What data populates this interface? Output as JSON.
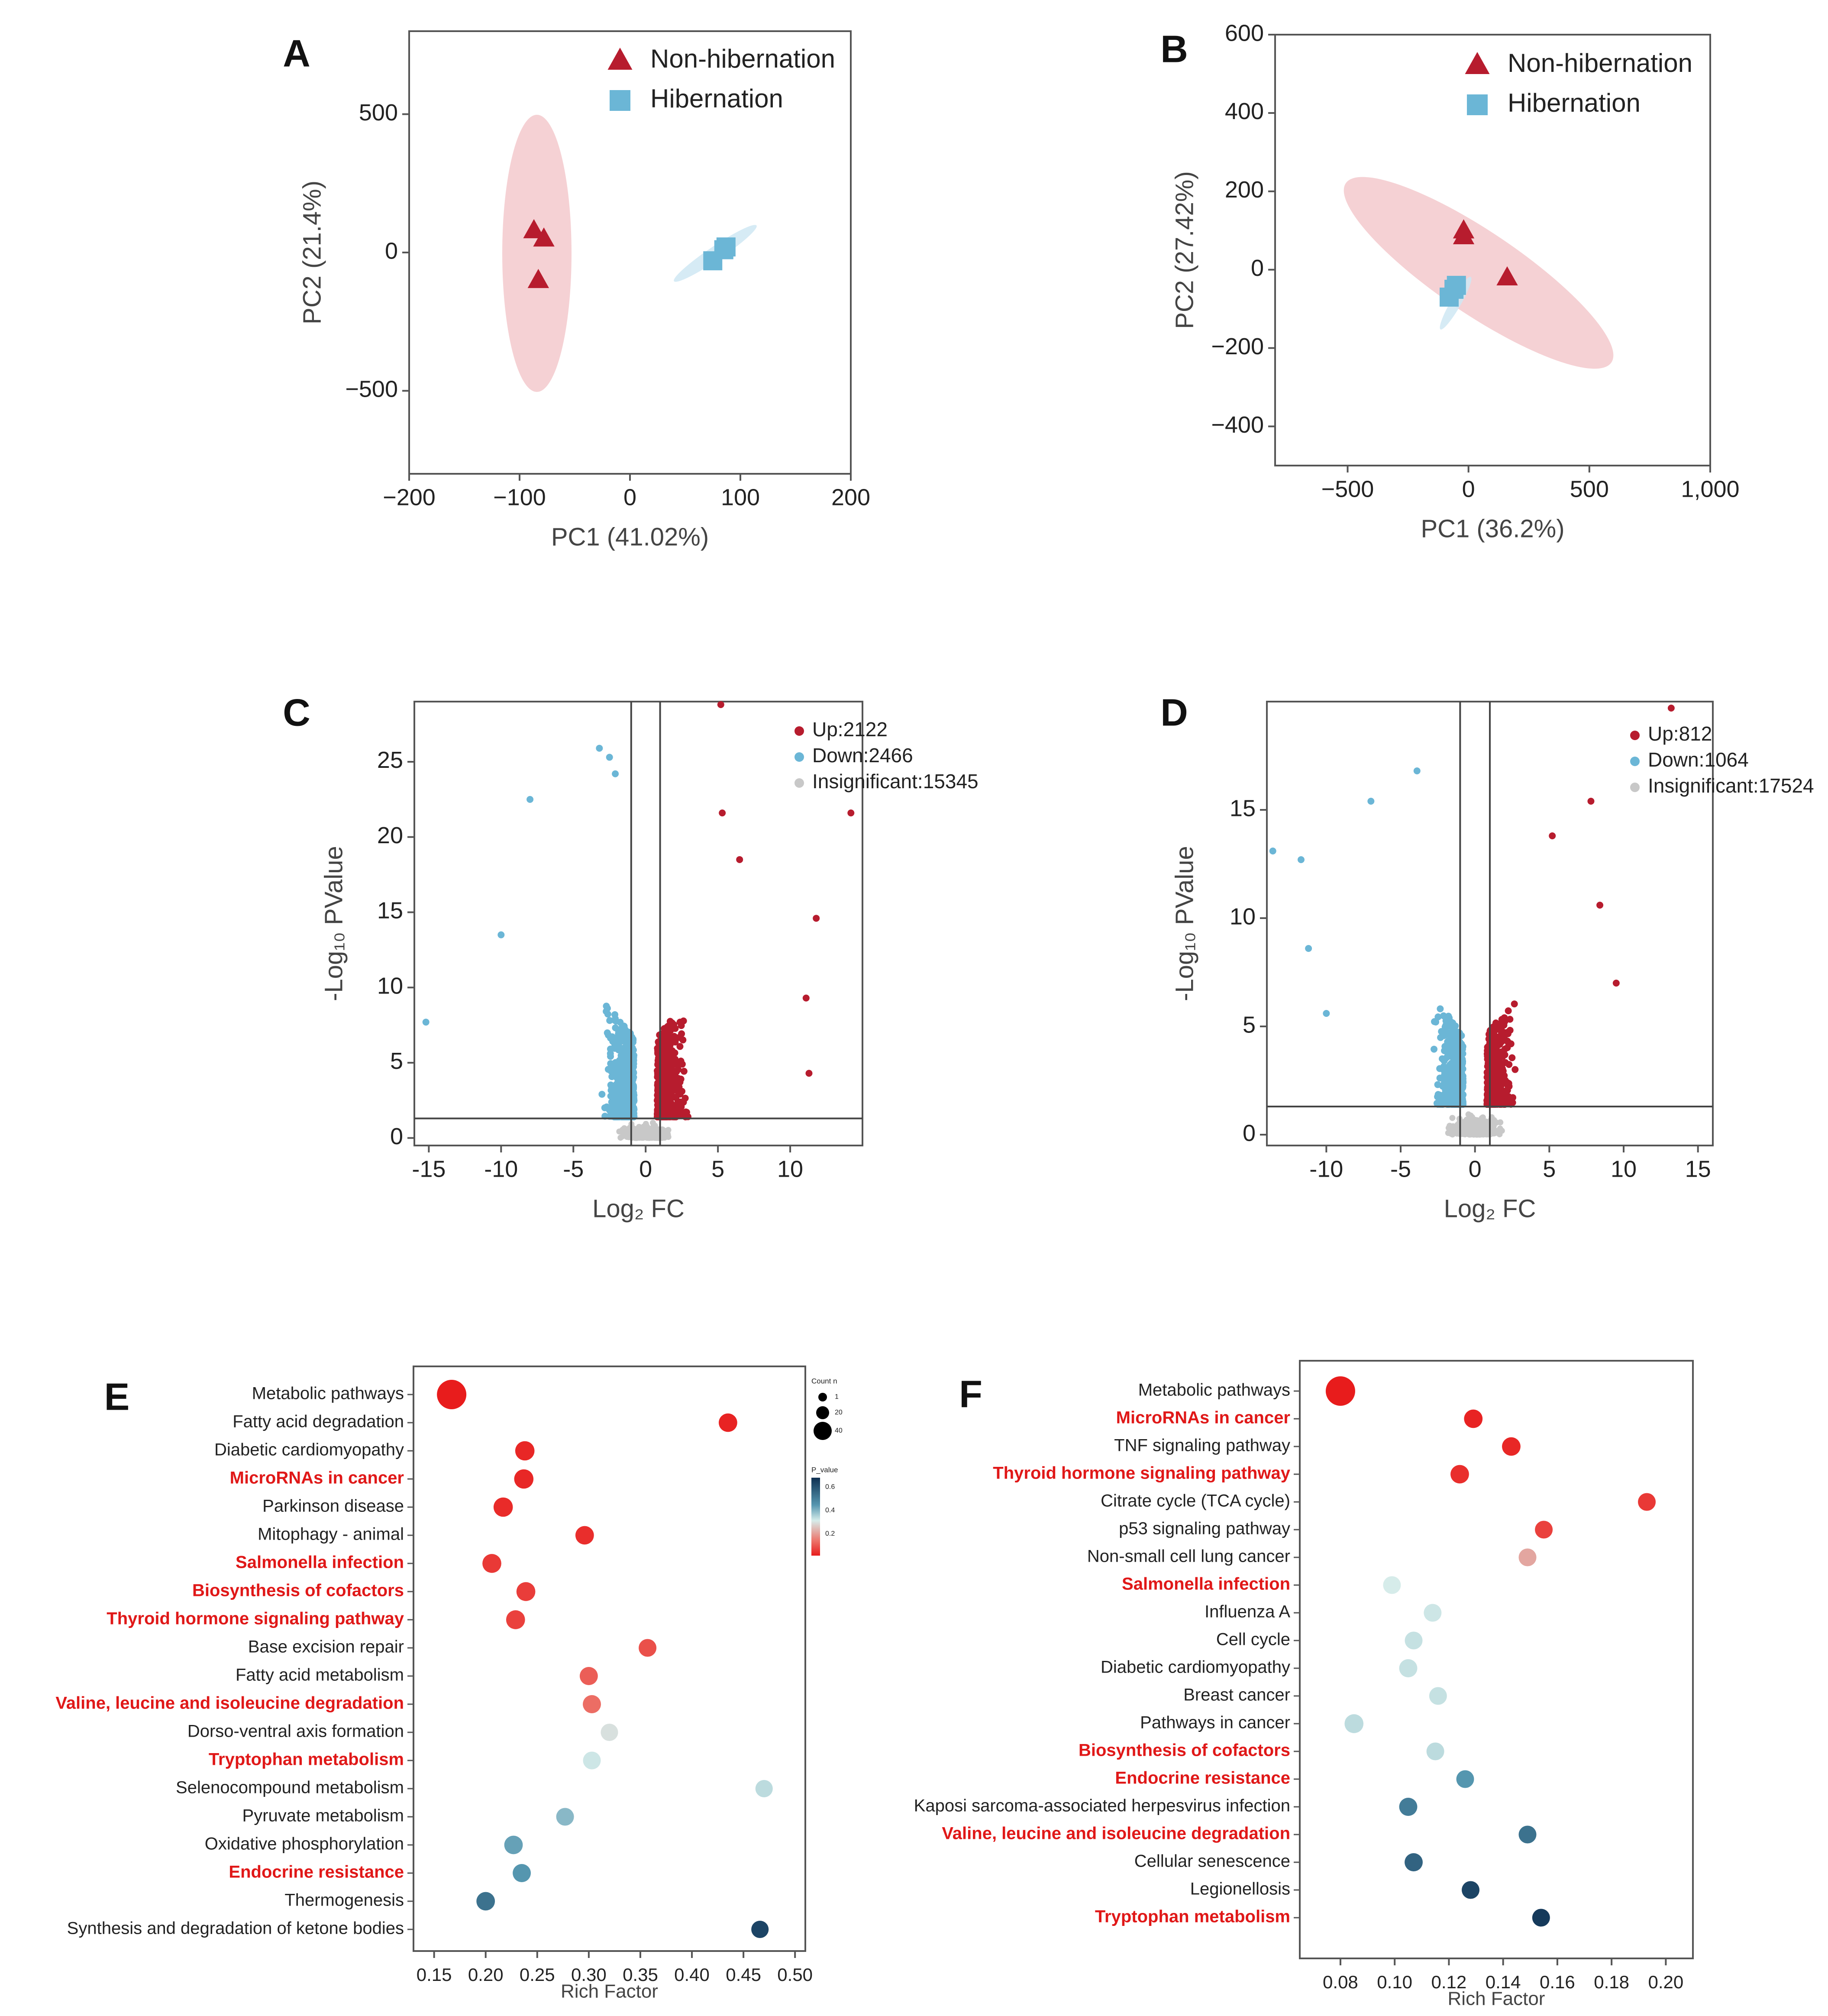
{
  "figure": {
    "title": "Multi-panel figure: PCA, volcano plots and KEGG enrichment bubble plots"
  },
  "colors": {
    "red": "#b71c2e",
    "blue": "#6bb6d6",
    "grey": "#c8c8c8",
    "ellipse_red": "#f3c9cc",
    "ellipse_blue": "#cfe8f3"
  },
  "chart_data": [
    {
      "panel": "A",
      "type": "scatter",
      "xlabel": "PC1 (41.02%)",
      "ylabel": "PC2 (21.4%)",
      "xlim": [
        -200,
        200
      ],
      "ylim": [
        -800,
        800
      ],
      "xticks": [
        -200,
        -100,
        0,
        100,
        200
      ],
      "xtick_labels": [
        "−200",
        "−100",
        "0",
        "100",
        "200"
      ],
      "yticks": [
        -500,
        0,
        500
      ],
      "ytick_labels": [
        "−500",
        "0",
        "500"
      ],
      "legend": [
        "Non-hibernation",
        "Hibernation"
      ],
      "series": [
        {
          "name": "Non-hibernation",
          "marker": "triangle",
          "points": [
            [
              -87,
              80
            ],
            [
              -78,
              50
            ],
            [
              -83,
              -100
            ]
          ]
        },
        {
          "name": "Hibernation",
          "marker": "square",
          "points": [
            [
              75,
              -30
            ],
            [
              85,
              10
            ],
            [
              87,
              20
            ]
          ]
        }
      ]
    },
    {
      "panel": "B",
      "type": "scatter",
      "xlabel": "PC1 (36.2%)",
      "ylabel": "PC2 (27.42%)",
      "xlim": [
        -800,
        1000
      ],
      "ylim": [
        -500,
        600
      ],
      "xticks": [
        -500,
        0,
        500,
        1000
      ],
      "xtick_labels": [
        "−500",
        "0",
        "500",
        "1,000"
      ],
      "yticks": [
        -400,
        -200,
        0,
        200,
        400,
        600
      ],
      "ytick_labels": [
        "−400",
        "−200",
        "0",
        "200",
        "400",
        "600"
      ],
      "legend": [
        "Non-hibernation",
        "Hibernation"
      ],
      "series": [
        {
          "name": "Non-hibernation",
          "marker": "triangle",
          "points": [
            [
              -20,
              100
            ],
            [
              -20,
              85
            ],
            [
              160,
              -20
            ]
          ]
        },
        {
          "name": "Hibernation",
          "marker": "square",
          "points": [
            [
              -50,
              -40
            ],
            [
              -60,
              -50
            ],
            [
              -80,
              -70
            ]
          ]
        }
      ]
    },
    {
      "panel": "C",
      "type": "scatter",
      "xlabel": "Log₂ FC",
      "ylabel": "-Log₁₀ PValue",
      "xlim": [
        -16,
        15
      ],
      "ylim": [
        -0.5,
        29
      ],
      "xticks": [
        -15,
        -10,
        -5,
        0,
        5,
        10
      ],
      "yticks": [
        0,
        5,
        10,
        15,
        20,
        25
      ],
      "legend": [
        "Up:2122",
        "Down:2466",
        "Insignificant:15345"
      ],
      "counts": {
        "up": 2122,
        "down": 2466,
        "insignificant": 15345
      }
    },
    {
      "panel": "D",
      "type": "scatter",
      "xlabel": "Log₂ FC",
      "ylabel": "-Log₁₀ PValue",
      "xlim": [
        -14,
        16
      ],
      "ylim": [
        -0.5,
        20
      ],
      "xticks": [
        -10,
        -5,
        0,
        5,
        10,
        15
      ],
      "yticks": [
        0,
        5,
        10,
        15
      ],
      "legend": [
        "Up:812",
        "Down:1064",
        "Insignificant:17524"
      ],
      "counts": {
        "up": 812,
        "down": 1064,
        "insignificant": 17524
      }
    },
    {
      "panel": "E",
      "type": "scatter",
      "xlabel": "Rich Factor",
      "xlim": [
        0.13,
        0.51
      ],
      "xticks": [
        0.15,
        0.2,
        0.25,
        0.3,
        0.35,
        0.4,
        0.45,
        0.5
      ],
      "xtick_labels": [
        "0.15",
        "0.20",
        "0.25",
        "0.30",
        "0.35",
        "0.40",
        "0.45",
        "0.50"
      ],
      "legend_labels": [
        "Count n",
        "1",
        "20",
        "40",
        "P_value",
        "0.6",
        "0.4",
        "0.2"
      ],
      "terms": [
        {
          "label": "Metabolic pathways",
          "rich": 0.167,
          "p": 0.0,
          "size": 40,
          "highlight": false
        },
        {
          "label": "Fatty acid degradation",
          "rich": 0.435,
          "p": 0.02,
          "size": 12,
          "highlight": false
        },
        {
          "label": "Diabetic cardiomyopathy",
          "rich": 0.238,
          "p": 0.03,
          "size": 14,
          "highlight": false
        },
        {
          "label": "MicroRNAs in cancer",
          "rich": 0.237,
          "p": 0.03,
          "size": 14,
          "highlight": true
        },
        {
          "label": "Parkinson disease",
          "rich": 0.217,
          "p": 0.04,
          "size": 14,
          "highlight": false
        },
        {
          "label": "Mitophagy - animal",
          "rich": 0.296,
          "p": 0.05,
          "size": 12,
          "highlight": false
        },
        {
          "label": "Salmonella infection",
          "rich": 0.206,
          "p": 0.08,
          "size": 13,
          "highlight": true
        },
        {
          "label": "Biosynthesis of cofactors",
          "rich": 0.239,
          "p": 0.09,
          "size": 13,
          "highlight": true
        },
        {
          "label": "Thyroid hormone signaling pathway",
          "rich": 0.229,
          "p": 0.1,
          "size": 13,
          "highlight": true
        },
        {
          "label": "Base excision repair",
          "rich": 0.357,
          "p": 0.14,
          "size": 10,
          "highlight": false
        },
        {
          "label": "Fatty acid metabolism",
          "rich": 0.3,
          "p": 0.18,
          "size": 11,
          "highlight": false
        },
        {
          "label": "Valine, leucine and isoleucine degradation",
          "rich": 0.303,
          "p": 0.22,
          "size": 11,
          "highlight": true
        },
        {
          "label": "Dorso-ventral axis formation",
          "rich": 0.32,
          "p": 0.34,
          "size": 9,
          "highlight": false
        },
        {
          "label": "Tryptophan metabolism",
          "rich": 0.303,
          "p": 0.36,
          "size": 10,
          "highlight": true
        },
        {
          "label": "Selenocompound metabolism",
          "rich": 0.47,
          "p": 0.38,
          "size": 9,
          "highlight": false
        },
        {
          "label": "Pyruvate metabolism",
          "rich": 0.277,
          "p": 0.44,
          "size": 10,
          "highlight": false
        },
        {
          "label": "Oxidative phosphorylation",
          "rich": 0.227,
          "p": 0.48,
          "size": 12,
          "highlight": false
        },
        {
          "label": "Endocrine resistance",
          "rich": 0.235,
          "p": 0.5,
          "size": 11,
          "highlight": true
        },
        {
          "label": "Thermogenesis",
          "rich": 0.2,
          "p": 0.57,
          "size": 12,
          "highlight": false
        },
        {
          "label": "Synthesis and degradation of ketone bodies",
          "rich": 0.466,
          "p": 0.66,
          "size": 9,
          "highlight": false
        }
      ]
    },
    {
      "panel": "F",
      "type": "scatter",
      "xlabel": "Rich Factor",
      "xlim": [
        0.065,
        0.21
      ],
      "xticks": [
        0.08,
        0.1,
        0.12,
        0.14,
        0.16,
        0.18,
        0.2
      ],
      "xtick_labels": [
        "0.08",
        "0.10",
        "0.12",
        "0.14",
        "0.16",
        "0.18",
        "0.20"
      ],
      "terms": [
        {
          "label": "Metabolic pathways",
          "rich": 0.08,
          "p": 0.0,
          "size": 40,
          "highlight": false
        },
        {
          "label": "MicroRNAs in cancer",
          "rich": 0.129,
          "p": 0.02,
          "size": 12,
          "highlight": true
        },
        {
          "label": "TNF signaling pathway",
          "rich": 0.143,
          "p": 0.03,
          "size": 12,
          "highlight": false
        },
        {
          "label": "Thyroid hormone signaling pathway",
          "rich": 0.124,
          "p": 0.05,
          "size": 12,
          "highlight": true
        },
        {
          "label": "Citrate cycle (TCA cycle)",
          "rich": 0.193,
          "p": 0.08,
          "size": 10,
          "highlight": false
        },
        {
          "label": "p53 signaling pathway",
          "rich": 0.155,
          "p": 0.1,
          "size": 10,
          "highlight": false
        },
        {
          "label": "Non-small cell lung cancer",
          "rich": 0.149,
          "p": 0.29,
          "size": 10,
          "highlight": false
        },
        {
          "label": "Salmonella infection",
          "rich": 0.099,
          "p": 0.35,
          "size": 10,
          "highlight": true
        },
        {
          "label": "Influenza A",
          "rich": 0.114,
          "p": 0.36,
          "size": 10,
          "highlight": false
        },
        {
          "label": "Cell cycle",
          "rich": 0.107,
          "p": 0.37,
          "size": 10,
          "highlight": false
        },
        {
          "label": "Diabetic cardiomyopathy",
          "rich": 0.105,
          "p": 0.37,
          "size": 11,
          "highlight": false
        },
        {
          "label": "Breast cancer",
          "rich": 0.116,
          "p": 0.37,
          "size": 10,
          "highlight": false
        },
        {
          "label": "Pathways in cancer",
          "rich": 0.085,
          "p": 0.38,
          "size": 13,
          "highlight": false
        },
        {
          "label": "Biosynthesis of cofactors",
          "rich": 0.115,
          "p": 0.38,
          "size": 10,
          "highlight": true
        },
        {
          "label": "Endocrine resistance",
          "rich": 0.126,
          "p": 0.5,
          "size": 10,
          "highlight": true
        },
        {
          "label": "Kaposi sarcoma-associated herpesvirus infection",
          "rich": 0.105,
          "p": 0.55,
          "size": 11,
          "highlight": false
        },
        {
          "label": "Valine, leucine and isoleucine degradation",
          "rich": 0.149,
          "p": 0.57,
          "size": 10,
          "highlight": true
        },
        {
          "label": "Cellular senescence",
          "rich": 0.107,
          "p": 0.6,
          "size": 11,
          "highlight": false
        },
        {
          "label": "Legionellosis",
          "rich": 0.128,
          "p": 0.66,
          "size": 10,
          "highlight": false
        },
        {
          "label": "Tryptophan metabolism",
          "rich": 0.154,
          "p": 0.68,
          "size": 10,
          "highlight": true
        }
      ]
    }
  ]
}
